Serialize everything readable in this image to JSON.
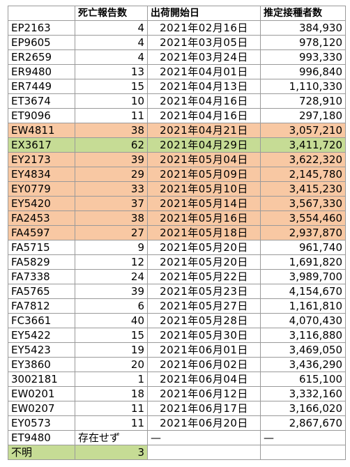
{
  "table": {
    "headers": [
      "",
      "死亡報告数",
      "出荷開始日",
      "推定接種者数"
    ],
    "rows": [
      {
        "lot": "EP2163",
        "deaths": "4",
        "date": "2021年02月16日",
        "est": "384,930",
        "hl": ""
      },
      {
        "lot": "EP9605",
        "deaths": "4",
        "date": "2021年03月05日",
        "est": "978,120",
        "hl": ""
      },
      {
        "lot": "ER2659",
        "deaths": "4",
        "date": "2021年03月24日",
        "est": "993,330",
        "hl": ""
      },
      {
        "lot": "ER9480",
        "deaths": "13",
        "date": "2021年04月01日",
        "est": "996,840",
        "hl": ""
      },
      {
        "lot": "ER7449",
        "deaths": "15",
        "date": "2021年04月13日",
        "est": "1,110,330",
        "hl": ""
      },
      {
        "lot": "ET3674",
        "deaths": "10",
        "date": "2021年04月16日",
        "est": "728,910",
        "hl": ""
      },
      {
        "lot": "ET9096",
        "deaths": "11",
        "date": "2021年04月16日",
        "est": "297,180",
        "hl": ""
      },
      {
        "lot": "EW4811",
        "deaths": "38",
        "date": "2021年04月21日",
        "est": "3,057,210",
        "hl": "orange"
      },
      {
        "lot": "EX3617",
        "deaths": "62",
        "date": "2021年04月29日",
        "est": "3,411,720",
        "hl": "green"
      },
      {
        "lot": "EY2173",
        "deaths": "39",
        "date": "2021年05月04日",
        "est": "3,622,320",
        "hl": "orange"
      },
      {
        "lot": "EY4834",
        "deaths": "29",
        "date": "2021年05月09日",
        "est": "2,145,780",
        "hl": "orange"
      },
      {
        "lot": "EY0779",
        "deaths": "33",
        "date": "2021年05月10日",
        "est": "3,415,230",
        "hl": "orange"
      },
      {
        "lot": "EY5420",
        "deaths": "37",
        "date": "2021年05月14日",
        "est": "3,567,330",
        "hl": "orange"
      },
      {
        "lot": "FA2453",
        "deaths": "38",
        "date": "2021年05月16日",
        "est": "3,554,460",
        "hl": "orange"
      },
      {
        "lot": "FA4597",
        "deaths": "27",
        "date": "2021年05月18日",
        "est": "2,937,870",
        "hl": "orange"
      },
      {
        "lot": "FA5715",
        "deaths": "9",
        "date": "2021年05月20日",
        "est": "961,740",
        "hl": ""
      },
      {
        "lot": "FA5829",
        "deaths": "12",
        "date": "2021年05月20日",
        "est": "1,691,820",
        "hl": ""
      },
      {
        "lot": "FA7338",
        "deaths": "24",
        "date": "2021年05月22日",
        "est": "3,989,700",
        "hl": ""
      },
      {
        "lot": "FA5765",
        "deaths": "39",
        "date": "2021年05月23日",
        "est": "4,154,670",
        "hl": ""
      },
      {
        "lot": "FA7812",
        "deaths": "6",
        "date": "2021年05月27日",
        "est": "1,161,810",
        "hl": ""
      },
      {
        "lot": "FC3661",
        "deaths": "40",
        "date": "2021年05月28日",
        "est": "4,070,430",
        "hl": ""
      },
      {
        "lot": "EY5422",
        "deaths": "15",
        "date": "2021年05月30日",
        "est": "3,116,880",
        "hl": ""
      },
      {
        "lot": "EY5423",
        "deaths": "19",
        "date": "2021年06月01日",
        "est": "3,469,050",
        "hl": ""
      },
      {
        "lot": "EY3860",
        "deaths": "20",
        "date": "2021年06月02日",
        "est": "3,436,290",
        "hl": ""
      },
      {
        "lot": "3002181",
        "deaths": "1",
        "date": "2021年06月04日",
        "est": "615,100",
        "hl": ""
      },
      {
        "lot": "EW0201",
        "deaths": "18",
        "date": "2021年06月12日",
        "est": "3,332,160",
        "hl": ""
      },
      {
        "lot": "EW0207",
        "deaths": "11",
        "date": "2021年06月17日",
        "est": "3,166,020",
        "hl": ""
      },
      {
        "lot": "EY0573",
        "deaths": "11",
        "date": "2021年06月20日",
        "est": "2,867,670",
        "hl": ""
      },
      {
        "lot": "ET9480",
        "deaths": "存在せず",
        "date": "—",
        "est": "—",
        "hl": "",
        "deaths_align": "left",
        "date_align": "left",
        "est_align": "left"
      },
      {
        "lot": "不明",
        "deaths": "3",
        "date": "",
        "est": "",
        "hl": "green-first"
      }
    ]
  },
  "colors": {
    "highlight_orange": "#f8c8a3",
    "highlight_green": "#c6dc95",
    "grid_line": "#9a9a9a"
  }
}
